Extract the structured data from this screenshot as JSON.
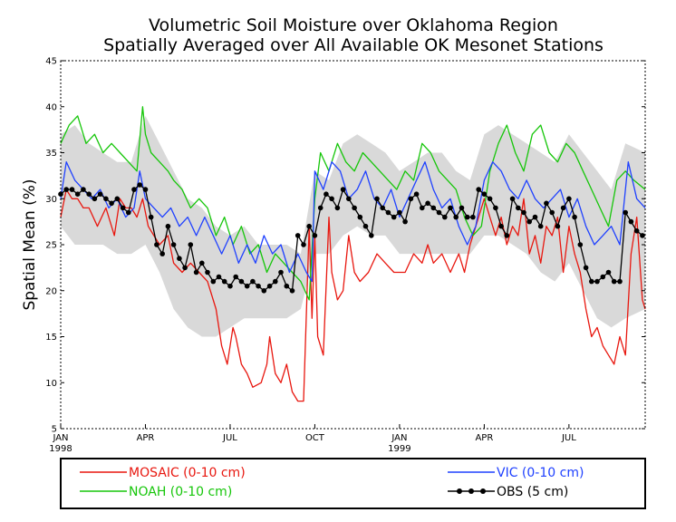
{
  "chart_data": {
    "type": "line",
    "title": "Volumetric Soil Moisture over Oklahoma Region",
    "subtitle": "Spatially Averaged over All Available OK Mesonet Stations",
    "ylabel": "Spatial Mean (%)",
    "ylim": [
      5,
      45
    ],
    "y_ticks": [
      "5",
      "10",
      "15",
      "20",
      "25",
      "30",
      "35",
      "40",
      "45"
    ],
    "x_range_months": [
      0,
      20.7
    ],
    "x_ticks": [
      {
        "pos": 0,
        "label": "JAN",
        "sub": "1998"
      },
      {
        "pos": 3,
        "label": "APR",
        "sub": ""
      },
      {
        "pos": 6,
        "label": "JUL",
        "sub": ""
      },
      {
        "pos": 9,
        "label": "OCT",
        "sub": ""
      },
      {
        "pos": 12,
        "label": "JAN",
        "sub": "1999"
      },
      {
        "pos": 15,
        "label": "APR",
        "sub": ""
      },
      {
        "pos": 18,
        "label": "JUL",
        "sub": ""
      }
    ],
    "x_unit": "months since Jan 1998",
    "envelope": {
      "x": [
        0,
        0.5,
        1,
        1.5,
        2,
        2.5,
        3,
        3.5,
        4,
        4.5,
        5,
        5.5,
        6,
        6.5,
        7,
        7.5,
        8,
        8.5,
        9,
        9.5,
        10,
        10.5,
        11,
        11.5,
        12,
        12.5,
        13,
        13.5,
        14,
        14.5,
        15,
        15.5,
        16,
        16.5,
        17,
        17.5,
        18,
        18.5,
        19,
        19.5,
        20,
        20.7
      ],
      "upper": [
        37,
        38,
        36,
        35,
        34,
        34,
        39,
        36,
        33,
        30,
        29,
        27,
        26,
        27,
        25,
        25,
        25,
        24,
        33,
        32,
        36,
        37,
        36,
        35,
        33,
        34,
        35,
        35,
        33,
        32,
        37,
        38,
        37,
        36,
        35,
        34,
        37,
        35,
        33,
        31,
        36,
        35
      ],
      "lower": [
        27,
        25,
        25,
        25,
        24,
        24,
        25,
        22,
        18,
        16,
        15,
        15,
        16,
        17,
        17,
        17,
        17,
        18,
        24,
        24,
        26,
        27,
        26,
        26,
        24,
        24,
        24,
        24,
        24,
        24,
        26,
        26,
        25,
        24,
        22,
        21,
        23,
        20,
        17,
        16,
        17,
        18
      ]
    },
    "series": [
      {
        "name": "MOSAIC (0-10 cm)",
        "color": "#e8170f",
        "x": [
          0,
          0.2,
          0.4,
          0.6,
          0.8,
          1.0,
          1.3,
          1.6,
          1.9,
          2.1,
          2.3,
          2.5,
          2.7,
          2.9,
          3.1,
          3.3,
          3.5,
          3.8,
          4.0,
          4.3,
          4.6,
          4.9,
          5.2,
          5.5,
          5.7,
          5.9,
          6.1,
          6.2,
          6.4,
          6.6,
          6.8,
          7.1,
          7.3,
          7.4,
          7.6,
          7.8,
          8.0,
          8.2,
          8.4,
          8.6,
          8.8,
          8.9,
          9.0,
          9.1,
          9.3,
          9.5,
          9.6,
          9.8,
          10.0,
          10.2,
          10.4,
          10.6,
          10.9,
          11.2,
          11.5,
          11.8,
          12.0,
          12.2,
          12.5,
          12.8,
          13.0,
          13.2,
          13.5,
          13.8,
          14.1,
          14.3,
          14.5,
          14.8,
          15.0,
          15.2,
          15.4,
          15.6,
          15.8,
          16.0,
          16.2,
          16.4,
          16.6,
          16.8,
          17.0,
          17.2,
          17.4,
          17.6,
          17.8,
          18.0,
          18.2,
          18.4,
          18.6,
          18.8,
          19.0,
          19.2,
          19.4,
          19.6,
          19.8,
          20.0,
          20.2,
          20.4,
          20.6,
          20.7
        ],
        "y": [
          28,
          31,
          30,
          30,
          29,
          29,
          27,
          29,
          26,
          30,
          29,
          29,
          28,
          30,
          27,
          26,
          25,
          26,
          23,
          22,
          23,
          22,
          21,
          18,
          14,
          12,
          16,
          15,
          12,
          11,
          9.5,
          10,
          12,
          15,
          11,
          10,
          12,
          9,
          8,
          8,
          27,
          17,
          26,
          15,
          13,
          28,
          22,
          19,
          20,
          26,
          22,
          21,
          22,
          24,
          23,
          22,
          22,
          22,
          24,
          23,
          25,
          23,
          24,
          22,
          24,
          22,
          25,
          28,
          30,
          28,
          26,
          28,
          25,
          27,
          26,
          30,
          24,
          26,
          23,
          27,
          26,
          28,
          22,
          27,
          24,
          22,
          18,
          15,
          16,
          14,
          13,
          12,
          15,
          13,
          24,
          28,
          19,
          18
        ]
      },
      {
        "name": "NOAH (0-10 cm)",
        "color": "#16c60a",
        "x": [
          0,
          0.3,
          0.6,
          0.9,
          1.2,
          1.5,
          1.8,
          2.1,
          2.4,
          2.7,
          2.9,
          3.0,
          3.2,
          3.5,
          3.8,
          4.0,
          4.3,
          4.6,
          4.9,
          5.2,
          5.5,
          5.8,
          6.1,
          6.4,
          6.7,
          7.0,
          7.3,
          7.6,
          7.9,
          8.2,
          8.5,
          8.8,
          9.0,
          9.2,
          9.5,
          9.8,
          10.1,
          10.4,
          10.7,
          11.0,
          11.3,
          11.6,
          11.9,
          12.2,
          12.5,
          12.8,
          13.1,
          13.4,
          13.7,
          14.0,
          14.3,
          14.6,
          14.9,
          15.2,
          15.5,
          15.8,
          16.1,
          16.4,
          16.7,
          17.0,
          17.3,
          17.6,
          17.9,
          18.2,
          18.5,
          18.8,
          19.1,
          19.4,
          19.7,
          20.0,
          20.3,
          20.7
        ],
        "y": [
          36,
          38,
          39,
          36,
          37,
          35,
          36,
          35,
          34,
          33,
          40,
          37,
          35,
          34,
          33,
          32,
          31,
          29,
          30,
          29,
          26,
          28,
          25,
          27,
          24,
          25,
          22,
          24,
          23,
          22,
          21,
          19,
          30,
          35,
          33,
          36,
          34,
          33,
          35,
          34,
          33,
          32,
          31,
          33,
          32,
          36,
          35,
          33,
          32,
          31,
          28,
          26,
          27,
          33,
          36,
          38,
          35,
          33,
          37,
          38,
          35,
          34,
          36,
          35,
          33,
          31,
          29,
          27,
          32,
          33,
          32,
          31
        ]
      },
      {
        "name": "VIC (0-10 cm)",
        "color": "#1f41ff",
        "x": [
          0,
          0.2,
          0.5,
          0.8,
          1.1,
          1.4,
          1.7,
          2.0,
          2.3,
          2.6,
          2.8,
          3.0,
          3.3,
          3.6,
          3.9,
          4.2,
          4.5,
          4.8,
          5.1,
          5.4,
          5.7,
          6.0,
          6.3,
          6.6,
          6.9,
          7.2,
          7.5,
          7.8,
          8.1,
          8.4,
          8.7,
          8.9,
          9.0,
          9.3,
          9.6,
          9.9,
          10.2,
          10.5,
          10.8,
          11.1,
          11.4,
          11.7,
          12.0,
          12.3,
          12.6,
          12.9,
          13.2,
          13.5,
          13.8,
          14.1,
          14.4,
          14.7,
          15.0,
          15.3,
          15.6,
          15.9,
          16.2,
          16.5,
          16.8,
          17.1,
          17.4,
          17.7,
          18.0,
          18.3,
          18.6,
          18.9,
          19.2,
          19.5,
          19.8,
          20.1,
          20.4,
          20.7
        ],
        "y": [
          30,
          34,
          32,
          31,
          30,
          31,
          29,
          30,
          28,
          29,
          33,
          30,
          29,
          28,
          29,
          27,
          28,
          26,
          28,
          26,
          24,
          26,
          23,
          25,
          23,
          26,
          24,
          25,
          22,
          24,
          22,
          21,
          33,
          31,
          34,
          33,
          30,
          31,
          33,
          30,
          29,
          31,
          28,
          30,
          32,
          34,
          31,
          29,
          30,
          27,
          25,
          27,
          32,
          34,
          33,
          31,
          30,
          32,
          30,
          29,
          30,
          31,
          28,
          30,
          27,
          25,
          26,
          27,
          25,
          34,
          30,
          29
        ]
      },
      {
        "name": "OBS (5 cm)",
        "color": "#000000",
        "markers": true,
        "x": [
          0,
          0.2,
          0.4,
          0.6,
          0.8,
          1.0,
          1.2,
          1.4,
          1.6,
          1.8,
          2.0,
          2.2,
          2.4,
          2.6,
          2.8,
          3.0,
          3.2,
          3.4,
          3.6,
          3.8,
          4.0,
          4.2,
          4.4,
          4.6,
          4.8,
          5.0,
          5.2,
          5.4,
          5.6,
          5.8,
          6.0,
          6.2,
          6.4,
          6.6,
          6.8,
          7.0,
          7.2,
          7.4,
          7.6,
          7.8,
          8.0,
          8.2,
          8.4,
          8.6,
          8.8,
          9.0,
          9.2,
          9.4,
          9.6,
          9.8,
          10.0,
          10.2,
          10.4,
          10.6,
          10.8,
          11.0,
          11.2,
          11.4,
          11.6,
          11.8,
          12.0,
          12.2,
          12.4,
          12.6,
          12.8,
          13.0,
          13.2,
          13.4,
          13.6,
          13.8,
          14.0,
          14.2,
          14.4,
          14.6,
          14.8,
          15.0,
          15.2,
          15.4,
          15.6,
          15.8,
          16.0,
          16.2,
          16.4,
          16.6,
          16.8,
          17.0,
          17.2,
          17.4,
          17.6,
          17.8,
          18.0,
          18.2,
          18.4,
          18.6,
          18.8,
          19.0,
          19.2,
          19.4,
          19.6,
          19.8,
          20.0,
          20.2,
          20.4,
          20.6
        ],
        "y": [
          30.5,
          31,
          31,
          30.5,
          31,
          30.5,
          30,
          30.5,
          30,
          29.5,
          30,
          29,
          28.5,
          31,
          31.5,
          31,
          28,
          25,
          24,
          27,
          25,
          23.5,
          22.5,
          25,
          22,
          23,
          22,
          21,
          21.5,
          21,
          20.5,
          21.5,
          21,
          20.5,
          21,
          20.5,
          20,
          20.5,
          21,
          22,
          20.5,
          20,
          26,
          25,
          27,
          26,
          29,
          30.5,
          30,
          29,
          31,
          30,
          29,
          28,
          27,
          26,
          30,
          29,
          28.5,
          28,
          28.5,
          27.5,
          30,
          30.5,
          29,
          29.5,
          29,
          28.5,
          28,
          29,
          28,
          29,
          28,
          28,
          31,
          30.5,
          30,
          29,
          27,
          26,
          30,
          29,
          28.5,
          27.5,
          28,
          27,
          29.5,
          28.5,
          27,
          29,
          30,
          28,
          25,
          22.5,
          21,
          21,
          21.5,
          22,
          21,
          21,
          28.5,
          27.5,
          26.5,
          26
        ]
      }
    ]
  }
}
